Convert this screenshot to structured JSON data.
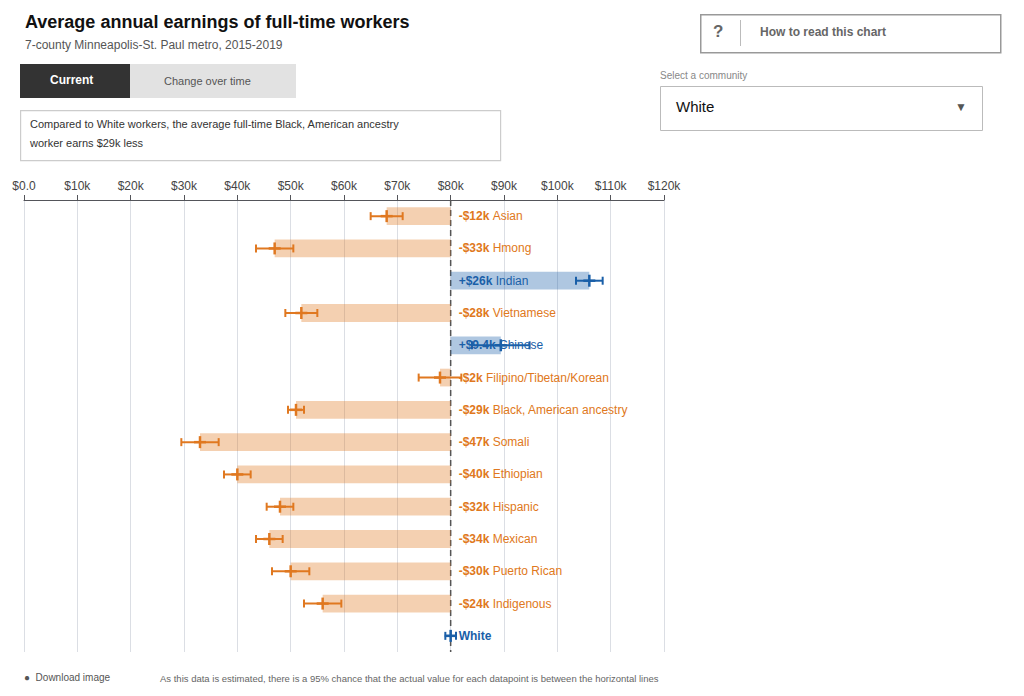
{
  "chart_data": {
    "type": "bar",
    "orientation": "horizontal",
    "title": "Average annual earnings of full-time workers",
    "subtitle": "7-county Minneapolis-St. Paul metro, 2015-2019",
    "categories": [
      "Asian",
      "Hmong",
      "Indian",
      "Vietnamese",
      "Chinese",
      "Filipino/Tibetan/Korean",
      "Black, American ancestry",
      "Somali",
      "Ethiopian",
      "Hispanic",
      "Mexican",
      "Puerto Rican",
      "Indigenous",
      "White"
    ],
    "values": [
      68000,
      47000,
      106000,
      52000,
      89400,
      78000,
      51000,
      33000,
      40000,
      48000,
      46000,
      50000,
      56000,
      80000
    ],
    "err_low": [
      65000,
      43500,
      103500,
      49000,
      84000,
      74000,
      49500,
      29500,
      37500,
      45500,
      43500,
      46500,
      52500,
      79000
    ],
    "err_high": [
      71000,
      50500,
      108500,
      55000,
      94800,
      82000,
      52500,
      36500,
      42500,
      50500,
      48500,
      53500,
      59500,
      81000
    ],
    "diffs": [
      "-$12k",
      "-$33k",
      "+$26k",
      "-$28k",
      "+$9.4k",
      "-$2k",
      "-$29k",
      "-$47k",
      "-$40k",
      "-$32k",
      "-$34k",
      "-$30k",
      "-$24k",
      null
    ],
    "baseline": 80000,
    "colors": [
      "#e07820",
      "#e07820",
      "#1a5fa8",
      "#e07820",
      "#1a5fa8",
      "#e07820",
      "#e07820",
      "#e07820",
      "#e07820",
      "#e07820",
      "#e07820",
      "#e07820",
      "#e07820",
      "#1a5fa8"
    ],
    "xlim": [
      0,
      120000
    ],
    "xticks": [
      {
        "value": 0,
        "label": "$0.0"
      },
      {
        "value": 10000,
        "label": "$10k"
      },
      {
        "value": 20000,
        "label": "$20k"
      },
      {
        "value": 30000,
        "label": "$30k"
      },
      {
        "value": 40000,
        "label": "$40k"
      },
      {
        "value": 50000,
        "label": "$50k"
      },
      {
        "value": 60000,
        "label": "$60k"
      },
      {
        "value": 70000,
        "label": "$70k"
      },
      {
        "value": 80000,
        "label": "$80k"
      },
      {
        "value": 90000,
        "label": "$90k"
      },
      {
        "value": 100000,
        "label": "$100k"
      },
      {
        "value": 110000,
        "label": "$110k"
      },
      {
        "value": 120000,
        "label": "$120k"
      }
    ],
    "grid": true,
    "tick_labels": "x",
    "annotations": [
      "?",
      "How to read this chart",
      "Current",
      "Change over time",
      "Select a community",
      "White",
      "▼",
      "Compared to White workers, the average full-time Black, American ancestry",
      "worker earns $29k less",
      "●  Download image",
      "As this data is estimated, there is a 95% chance that the actual value for each datapoint is between the horizontal lines"
    ]
  }
}
